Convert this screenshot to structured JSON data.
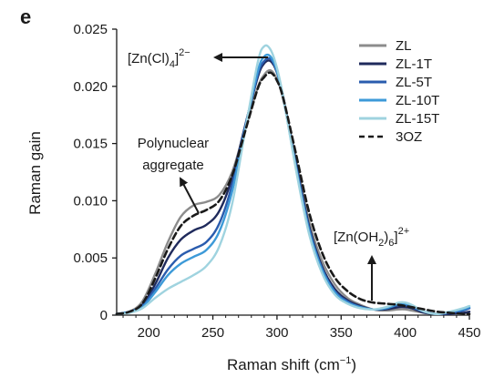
{
  "panel_label": "e",
  "chart_data": {
    "type": "line",
    "xlabel": "Raman shift (cm",
    "xlabel_sup": "−1",
    "xlabel_end": ")",
    "ylabel": "Raman gain",
    "xlim": [
      175,
      450
    ],
    "ylim": [
      0,
      0.025
    ],
    "x_ticks": [
      200,
      250,
      300,
      350,
      400,
      450
    ],
    "x_tick_labels": [
      "200",
      "250",
      "300",
      "350",
      "400",
      "450"
    ],
    "y_ticks": [
      0,
      0.005,
      0.01,
      0.015,
      0.02,
      0.025
    ],
    "y_tick_labels": [
      "0",
      "0.005",
      "0.010",
      "0.015",
      "0.020",
      "0.025"
    ],
    "grid": false,
    "legend_position": "top-right",
    "x": [
      175,
      185,
      195,
      205,
      215,
      225,
      235,
      245,
      255,
      265,
      275,
      285,
      290,
      295,
      300,
      305,
      315,
      325,
      335,
      345,
      355,
      365,
      375,
      385,
      395,
      400,
      405,
      415,
      425,
      435,
      445,
      450
    ],
    "series": [
      {
        "name": "ZL",
        "color": "#8c8c8c",
        "dash": false,
        "values": [
          0.0001,
          0.0003,
          0.0012,
          0.0036,
          0.0064,
          0.0086,
          0.0096,
          0.0099,
          0.0105,
          0.0125,
          0.0162,
          0.0199,
          0.021,
          0.0214,
          0.0206,
          0.0188,
          0.0135,
          0.0082,
          0.0048,
          0.0027,
          0.0015,
          0.0009,
          0.0005,
          0.0004,
          0.0005,
          0.0005,
          0.0004,
          0.0002,
          0.0001,
          0.0001,
          0.0001,
          0.0001
        ]
      },
      {
        "name": "ZL-1T",
        "color": "#1f2a5c",
        "dash": false,
        "values": [
          0.0001,
          0.0003,
          0.0009,
          0.0027,
          0.005,
          0.0066,
          0.0074,
          0.0079,
          0.0091,
          0.012,
          0.0165,
          0.0208,
          0.022,
          0.0222,
          0.0212,
          0.019,
          0.0132,
          0.0078,
          0.0043,
          0.0023,
          0.0013,
          0.0008,
          0.0005,
          0.0005,
          0.0007,
          0.0007,
          0.0006,
          0.0002,
          0.0001,
          0.0001,
          0.0002,
          0.0003
        ]
      },
      {
        "name": "ZL-5T",
        "color": "#2a5cae",
        "dash": false,
        "values": [
          0.0001,
          0.0003,
          0.0008,
          0.0023,
          0.004,
          0.0052,
          0.0058,
          0.0064,
          0.008,
          0.0114,
          0.0164,
          0.021,
          0.0222,
          0.0224,
          0.0213,
          0.019,
          0.013,
          0.0076,
          0.0041,
          0.0021,
          0.0012,
          0.0007,
          0.0005,
          0.0006,
          0.0009,
          0.0009,
          0.0007,
          0.0003,
          0.0001,
          0.0002,
          0.0004,
          0.0006
        ]
      },
      {
        "name": "ZL-10T",
        "color": "#3d9ad8",
        "dash": false,
        "values": [
          0.0001,
          0.0003,
          0.0007,
          0.002,
          0.0035,
          0.0045,
          0.0051,
          0.0057,
          0.0073,
          0.0108,
          0.0162,
          0.0213,
          0.0226,
          0.0226,
          0.0213,
          0.0189,
          0.0128,
          0.0074,
          0.004,
          0.002,
          0.0011,
          0.0007,
          0.0005,
          0.0006,
          0.001,
          0.001,
          0.0008,
          0.0003,
          0.0001,
          0.0003,
          0.0005,
          0.0007
        ]
      },
      {
        "name": "ZL-15T",
        "color": "#9fd3df",
        "dash": false,
        "values": [
          0.0001,
          0.0002,
          0.0006,
          0.0015,
          0.0023,
          0.0029,
          0.0035,
          0.0043,
          0.006,
          0.0097,
          0.016,
          0.0221,
          0.0235,
          0.0232,
          0.0216,
          0.019,
          0.0126,
          0.0071,
          0.0037,
          0.0018,
          0.001,
          0.0006,
          0.0005,
          0.0007,
          0.0011,
          0.0011,
          0.0009,
          0.0003,
          0.0001,
          0.0003,
          0.0006,
          0.0008
        ]
      },
      {
        "name": "3OZ",
        "color": "#1a1a1a",
        "dash": true,
        "values": [
          0.0001,
          0.0003,
          0.001,
          0.0032,
          0.0058,
          0.0078,
          0.0087,
          0.0092,
          0.01,
          0.0122,
          0.016,
          0.0198,
          0.0208,
          0.0212,
          0.0205,
          0.0189,
          0.014,
          0.009,
          0.0055,
          0.0033,
          0.0021,
          0.0014,
          0.0011,
          0.001,
          0.0009,
          0.0008,
          0.0007,
          0.0005,
          0.0003,
          0.0002,
          0.0001,
          0.0001
        ]
      }
    ],
    "annotations": [
      {
        "id": "zncl4",
        "main": "[Zn(Cl)",
        "sub": "4",
        "close": "]",
        "sup": "2−"
      },
      {
        "id": "poly",
        "line1": "Polynuclear",
        "line2": "aggregate"
      },
      {
        "id": "znoh2",
        "main": "[Zn(OH",
        "sub1": "2",
        "mid": ")",
        "sub2": "6",
        "close": "]",
        "sup": "2+"
      }
    ]
  }
}
